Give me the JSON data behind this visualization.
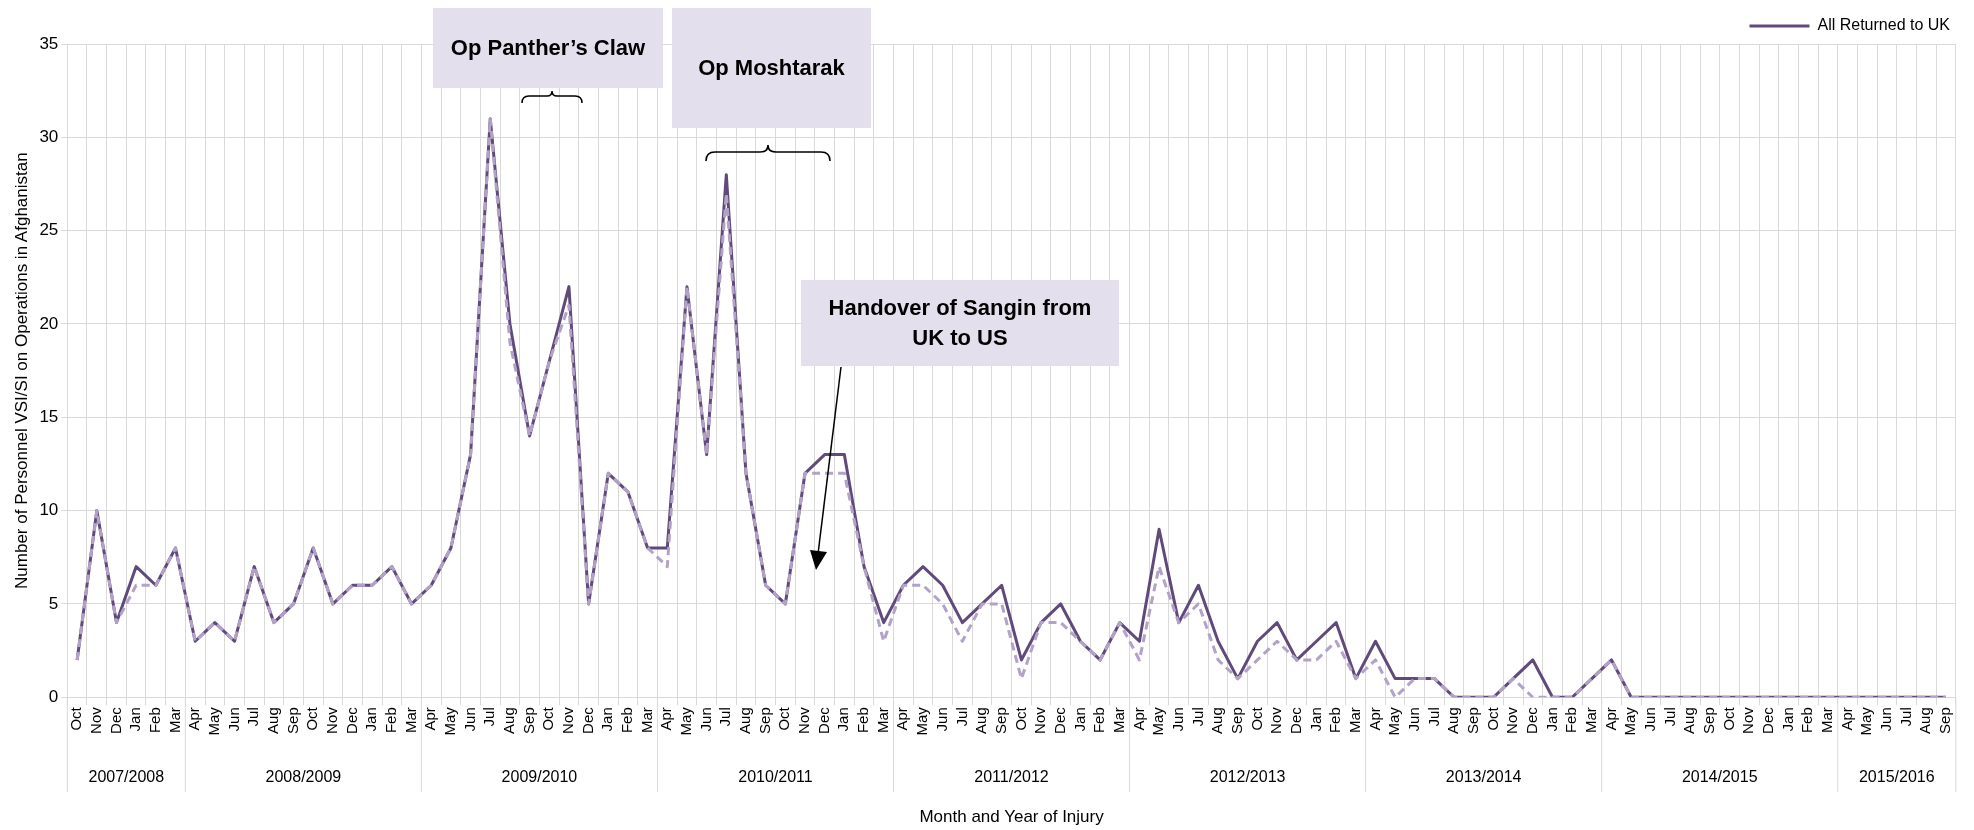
{
  "chart_data": {
    "type": "line",
    "categories": [
      "Oct",
      "Nov",
      "Dec",
      "Jan",
      "Feb",
      "Mar",
      "Apr",
      "May",
      "Jun",
      "Jul",
      "Aug",
      "Sep",
      "Oct",
      "Nov",
      "Dec",
      "Jan",
      "Feb",
      "Mar",
      "Apr",
      "May",
      "Jun",
      "Jul",
      "Aug",
      "Sep",
      "Oct",
      "Nov",
      "Dec",
      "Jan",
      "Feb",
      "Mar",
      "Apr",
      "May",
      "Jun",
      "Jul",
      "Aug",
      "Sep",
      "Oct",
      "Nov",
      "Dec",
      "Jan",
      "Feb",
      "Mar",
      "Apr",
      "May",
      "Jun",
      "Jul",
      "Aug",
      "Sep",
      "Oct",
      "Nov",
      "Dec",
      "Jan",
      "Feb",
      "Mar",
      "Apr",
      "May",
      "Jun",
      "Jul",
      "Aug",
      "Sep",
      "Oct",
      "Nov",
      "Dec",
      "Jan",
      "Feb",
      "Mar",
      "Apr",
      "May",
      "Jun",
      "Jul",
      "Aug",
      "Sep",
      "Oct",
      "Nov",
      "Dec",
      "Jan",
      "Feb",
      "Mar",
      "Apr",
      "May",
      "Jun",
      "Jul",
      "Aug",
      "Sep",
      "Oct",
      "Nov",
      "Dec",
      "Jan",
      "Feb",
      "Mar",
      "Apr",
      "May",
      "Jun",
      "Jul",
      "Aug",
      "Sep"
    ],
    "series": [
      {
        "name": "All Returned to UK",
        "color": "#604a7b",
        "line_style": "solid",
        "values": [
          2,
          10,
          4,
          7,
          6,
          8,
          3,
          4,
          3,
          7,
          4,
          5,
          8,
          5,
          6,
          6,
          7,
          5,
          6,
          8,
          13,
          31,
          20,
          14,
          18,
          22,
          5,
          12,
          11,
          8,
          8,
          22,
          13,
          28,
          12,
          6,
          5,
          12,
          13,
          13,
          7,
          4,
          6,
          7,
          6,
          4,
          5,
          6,
          2,
          4,
          5,
          3,
          2,
          4,
          3,
          9,
          4,
          6,
          3,
          1,
          3,
          4,
          2,
          3,
          4,
          1,
          3,
          1,
          1,
          1,
          0,
          0,
          0,
          1,
          2,
          0,
          0,
          1,
          2,
          0,
          0,
          0,
          0,
          0,
          0,
          0,
          0,
          0,
          0,
          0,
          0,
          0,
          0,
          0,
          0,
          0
        ]
      },
      {
        "color": "#b3a2c7",
        "line_style": "dashed",
        "values": [
          2,
          10,
          4,
          6,
          6,
          8,
          3,
          4,
          3,
          7,
          4,
          5,
          8,
          5,
          6,
          6,
          7,
          5,
          6,
          8,
          13,
          31,
          19,
          14,
          18,
          21,
          5,
          12,
          11,
          8,
          7,
          22,
          13,
          27,
          12,
          6,
          5,
          12,
          12,
          12,
          7,
          3,
          6,
          6,
          5,
          3,
          5,
          5,
          1,
          4,
          4,
          3,
          2,
          4,
          2,
          7,
          4,
          5,
          2,
          1,
          2,
          3,
          2,
          2,
          3,
          1,
          2,
          0,
          1,
          1,
          0,
          0,
          0,
          1,
          0,
          0,
          0,
          1,
          2,
          0,
          0,
          0,
          0,
          0,
          0,
          0,
          0,
          0,
          0,
          0,
          0,
          0,
          0,
          0,
          0,
          0
        ]
      }
    ],
    "ylim": [
      0,
      35
    ],
    "yticks": [
      0,
      5,
      10,
      15,
      20,
      25,
      30,
      35
    ],
    "xlabel": "Month and Year of Injury",
    "ylabel": "Number of Personnel VSI/SI on Operations in Afghanistan",
    "legend": "top right",
    "grid": true,
    "marker": "none",
    "annotations": [
      "Op Panther’s Claw",
      "Op Moshtarak",
      "Handover of Sangin from UK to US",
      "2007/2008",
      "2008/2009",
      "2009/2010",
      "2010/2011",
      "2011/2012",
      "2012/2013",
      "2013/2014",
      "2014/2015",
      "2015/2016"
    ]
  }
}
